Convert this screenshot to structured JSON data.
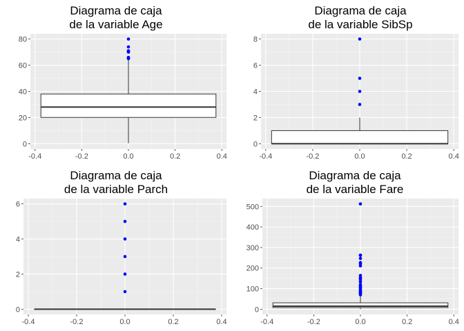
{
  "colors": {
    "panel_background": "#ebebeb",
    "grid_major": "#ffffff",
    "grid_minor": "#f5f5f5",
    "box_fill": "#ffffff",
    "box_line": "#333333",
    "outlier": "#0000ff"
  },
  "chart_data": [
    {
      "type": "boxplot",
      "title_line1": "Diagrama de caja",
      "title_line2": "de la variable Age",
      "x_ticks": [
        "-0.4",
        "-0.2",
        "0.0",
        "0.2",
        "0.4"
      ],
      "y_ticks": [
        "0",
        "20",
        "40",
        "60",
        "80"
      ],
      "xlim": [
        -0.42,
        0.42
      ],
      "ylim": [
        -4,
        84
      ],
      "grid": true,
      "box": {
        "x_min": -0.375,
        "x_max": 0.375,
        "whisker_low": 0.42,
        "q1": 20.1,
        "median": 28,
        "q3": 38,
        "whisker_high": 64
      },
      "outliers": [
        65,
        65.5,
        66,
        70,
        70.5,
        71,
        74,
        80
      ]
    },
    {
      "type": "boxplot",
      "title_line1": "Diagrama de caja",
      "title_line2": "de la variable SibSp",
      "x_ticks": [
        "-0.4",
        "-0.2",
        "0.0",
        "0.2",
        "0.4"
      ],
      "y_ticks": [
        "0",
        "2",
        "4",
        "6",
        "8"
      ],
      "xlim": [
        -0.42,
        0.42
      ],
      "ylim": [
        -0.4,
        8.4
      ],
      "grid": true,
      "box": {
        "x_min": -0.375,
        "x_max": 0.375,
        "whisker_low": 0,
        "q1": 0,
        "median": 0,
        "q3": 1,
        "whisker_high": 2
      },
      "outliers": [
        3,
        4,
        5,
        8
      ]
    },
    {
      "type": "boxplot",
      "title_line1": "Diagrama de caja",
      "title_line2": "de la variable Parch",
      "x_ticks": [
        "-0.4",
        "-0.2",
        "0.0",
        "0.2",
        "0.4"
      ],
      "y_ticks": [
        "0",
        "2",
        "4",
        "6"
      ],
      "xlim": [
        -0.42,
        0.42
      ],
      "ylim": [
        -0.3,
        6.3
      ],
      "grid": true,
      "box": {
        "x_min": -0.375,
        "x_max": 0.375,
        "whisker_low": 0,
        "q1": 0,
        "median": 0,
        "q3": 0,
        "whisker_high": 0
      },
      "outliers": [
        1,
        2,
        3,
        4,
        5,
        6
      ]
    },
    {
      "type": "boxplot",
      "title_line1": "Diagrama de caja",
      "title_line2": "de la variable Fare",
      "x_ticks": [
        "-0.4",
        "-0.2",
        "0.0",
        "0.2",
        "0.4"
      ],
      "y_ticks": [
        "0",
        "100",
        "200",
        "300",
        "400",
        "500"
      ],
      "xlim": [
        -0.42,
        0.42
      ],
      "ylim": [
        -25.6,
        537.9
      ],
      "grid": true,
      "box": {
        "x_min": -0.375,
        "x_max": 0.375,
        "whisker_low": 0,
        "q1": 7.9,
        "median": 14.5,
        "q3": 31,
        "whisker_high": 65
      },
      "outliers": [
        70,
        75,
        78,
        80,
        83,
        86,
        90,
        93,
        100,
        106,
        110,
        113,
        120,
        133,
        135,
        146,
        151,
        153,
        164,
        211,
        221,
        227,
        247,
        262,
        263,
        512
      ]
    }
  ]
}
